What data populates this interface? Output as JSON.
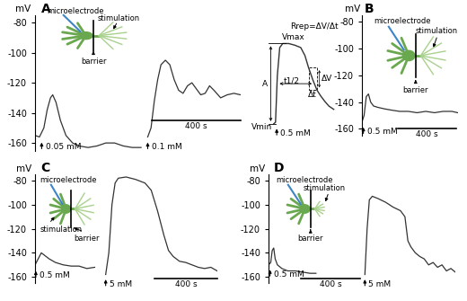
{
  "chart_data": [
    {
      "type": "line",
      "title": "A",
      "y_label": "mV",
      "ylim": [
        -165,
        -75
      ],
      "yticks": [
        -160,
        -140,
        -120,
        -100,
        -80
      ],
      "tick_labels": "y",
      "series": [
        {
          "color": "#333333",
          "x": [
            0,
            20,
            40,
            55,
            70,
            80,
            95,
            115,
            140,
            170,
            200,
            240,
            280,
            320,
            360,
            400,
            440,
            480
          ],
          "values": [
            -155,
            -156,
            -150,
            -138,
            -130,
            -128,
            -133,
            -145,
            -155,
            -160,
            -162,
            -163,
            -162,
            -160,
            -160,
            -162,
            -163,
            -163
          ]
        },
        {
          "color": "#333333",
          "x": [
            510,
            525,
            540,
            555,
            570,
            590,
            610,
            630,
            650,
            670,
            690,
            710,
            730,
            750,
            770,
            790,
            810,
            840,
            870,
            900,
            930
          ],
          "values": [
            -156,
            -150,
            -132,
            -118,
            -108,
            -105,
            -108,
            -118,
            -125,
            -127,
            -122,
            -120,
            -124,
            -128,
            -127,
            -122,
            -125,
            -130,
            -128,
            -127,
            -128
          ]
        }
      ],
      "stimuli": [
        {
          "text": "0.05 mM",
          "x": 30,
          "y": -158
        },
        {
          "text": "0.1 mM",
          "x": 510,
          "y": -158
        }
      ],
      "scale_bar": {
        "x": 530,
        "y": -145,
        "length": 400,
        "label": "400 s"
      },
      "schematic": {
        "microelectrode": "microelectrode",
        "stimulation": "stimulation",
        "barrier": "barrier"
      }
    },
    {
      "type": "line",
      "tick_labels": false,
      "series": [
        {
          "color": "#333333",
          "x": [
            0,
            3,
            6,
            10,
            15,
            25,
            35,
            45,
            52,
            58,
            65,
            72,
            78,
            85,
            92,
            100
          ],
          "values": [
            0,
            2,
            60,
            95,
            100,
            100,
            98,
            95,
            85,
            70,
            55,
            42,
            35,
            28,
            22,
            18
          ]
        }
      ],
      "annotations": [
        {
          "text": "Vmax",
          "x": 14,
          "y": 103
        },
        {
          "text": "Vmin",
          "x": -3,
          "y": -4
        },
        {
          "text": "A",
          "x": -10,
          "y": 50
        },
        {
          "text": "t1/2",
          "x": 30,
          "y": 53
        },
        {
          "text": "Rrep=ΔV/Δt",
          "x": 68,
          "y": 116
        },
        {
          "text": "ΔV",
          "x": 80,
          "y": 56
        },
        {
          "text": "Δt",
          "x": 65,
          "y": 36
        }
      ],
      "stimuli": [
        {
          "text": "0.5 mM",
          "x": 5,
          "y": -3
        }
      ]
    },
    {
      "type": "line",
      "title": "B",
      "y_label": "mV",
      "ylim": [
        -165,
        -75
      ],
      "yticks": [
        -160,
        -140,
        -120,
        -100,
        -80
      ],
      "tick_labels": "y",
      "series": [
        {
          "color": "#333333",
          "x": [
            0,
            15,
            30,
            45,
            60,
            80,
            110,
            150,
            200,
            260,
            320,
            380,
            440,
            500,
            560,
            620,
            660
          ],
          "values": [
            -155,
            -150,
            -136,
            -134,
            -140,
            -143,
            -144,
            -145,
            -146,
            -147,
            -147,
            -148,
            -147,
            -148,
            -147,
            -147,
            -148
          ]
        }
      ],
      "stimuli": [
        {
          "text": "0.5 mM",
          "x": 10,
          "y": -157
        }
      ],
      "scale_bar": {
        "x": 250,
        "y": -160,
        "length": 400,
        "label": "400 s"
      },
      "schematic": {
        "microelectrode": "microelectrode",
        "stimulation": "stimulation",
        "barrier": "barrier"
      }
    },
    {
      "type": "line",
      "title": "C",
      "y_label": "mV",
      "ylim": [
        -165,
        -75
      ],
      "yticks": [
        -160,
        -140,
        -120,
        -100,
        -80
      ],
      "tick_labels": "y",
      "series": [
        {
          "color": "#333333",
          "x": [
            0,
            20,
            40,
            60,
            90,
            130,
            180,
            230,
            280,
            330,
            380
          ],
          "values": [
            -150,
            -145,
            -140,
            -142,
            -145,
            -148,
            -150,
            -151,
            -151,
            -153,
            -152
          ]
        },
        {
          "color": "#333333",
          "x": [
            450,
            470,
            490,
            510,
            530,
            580,
            640,
            700,
            740,
            780,
            820,
            850,
            880,
            920,
            960,
            1000,
            1040,
            1080,
            1120,
            1160
          ],
          "values": [
            -158,
            -140,
            -100,
            -82,
            -78,
            -77,
            -79,
            -82,
            -88,
            -105,
            -125,
            -138,
            -143,
            -147,
            -148,
            -150,
            -152,
            -153,
            -152,
            -155
          ]
        }
      ],
      "stimuli": [
        {
          "text": "0.5 mM",
          "x": 5,
          "y": -153
        },
        {
          "text": "5 mM",
          "x": 450,
          "y": -160
        }
      ],
      "scale_bar": {
        "x": 760,
        "y": -161,
        "length": 400,
        "label": "400 s"
      },
      "schematic": {
        "microelectrode": "microelectrode",
        "stimulation": "stimulation",
        "barrier": "barrier"
      }
    },
    {
      "type": "line",
      "title": "D",
      "y_label": "mV",
      "ylim": [
        -165,
        -75
      ],
      "yticks": [
        -160,
        -140,
        -120,
        -100,
        -80
      ],
      "tick_labels": "y",
      "series": [
        {
          "color": "#333333",
          "x": [
            0,
            15,
            25,
            35,
            45,
            60,
            90,
            130,
            180,
            230,
            280,
            320
          ],
          "values": [
            -150,
            -148,
            -138,
            -136,
            -145,
            -150,
            -153,
            -155,
            -155,
            -156,
            -157,
            -157
          ]
        },
        {
          "color": "#333333",
          "x": [
            650,
            665,
            680,
            700,
            740,
            790,
            840,
            890,
            920,
            940,
            960,
            990,
            1020,
            1050,
            1080,
            1110,
            1140,
            1170,
            1200,
            1230,
            1260
          ],
          "values": [
            -158,
            -120,
            -96,
            -93,
            -95,
            -98,
            -102,
            -105,
            -110,
            -130,
            -135,
            -140,
            -143,
            -145,
            -150,
            -148,
            -152,
            -150,
            -155,
            -153,
            -156
          ]
        }
      ],
      "stimuli": [
        {
          "text": "0.5 mM",
          "x": 10,
          "y": -152
        },
        {
          "text": "5 mM",
          "x": 650,
          "y": -160
        }
      ],
      "scale_bar": {
        "x": 220,
        "y": -161,
        "length": 400,
        "label": "400 s"
      },
      "schematic": {
        "microelectrode": "microelectrode",
        "stimulation": "stimulation",
        "barrier": "barrier"
      }
    }
  ]
}
